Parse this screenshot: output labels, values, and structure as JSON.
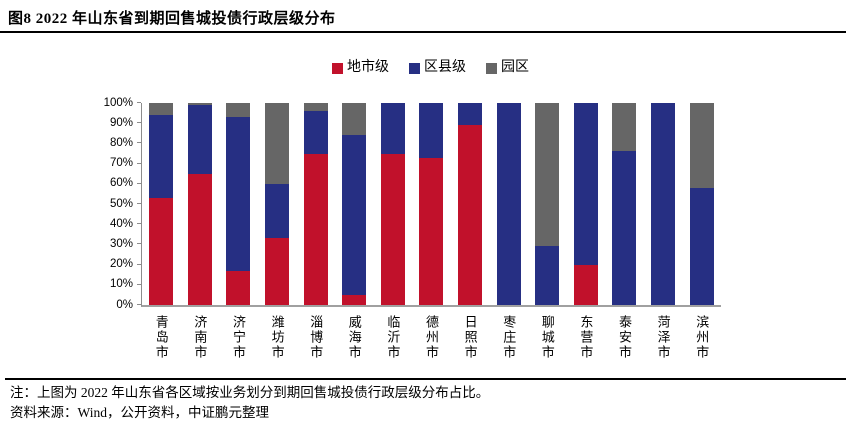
{
  "header": {
    "title": "图8  2022 年山东省到期回售城投债行政层级分布"
  },
  "chart_data": {
    "type": "bar",
    "stacked": true,
    "percent": true,
    "title": "",
    "xlabel": "",
    "ylabel": "",
    "ylim": [
      0,
      100
    ],
    "grid": false,
    "legend_position": "top-center",
    "y_ticks": [
      "0%",
      "10%",
      "20%",
      "30%",
      "40%",
      "50%",
      "60%",
      "70%",
      "80%",
      "90%",
      "100%"
    ],
    "categories": [
      "青岛市",
      "济南市",
      "济宁市",
      "潍坊市",
      "淄博市",
      "威海市",
      "临沂市",
      "德州市",
      "日照市",
      "枣庄市",
      "聊城市",
      "东营市",
      "泰安市",
      "菏泽市",
      "滨州市"
    ],
    "series": [
      {
        "name": "地市级",
        "color": "#c1112b",
        "values": [
          53,
          65,
          17,
          33,
          75,
          5,
          75,
          73,
          89,
          0,
          0,
          20,
          0,
          0,
          0
        ]
      },
      {
        "name": "区县级",
        "color": "#262f83",
        "values": [
          41,
          34,
          76,
          27,
          21,
          79,
          25,
          27,
          11,
          100,
          29,
          80,
          76,
          100,
          58
        ]
      },
      {
        "name": "园区",
        "color": "#666666",
        "values": [
          6,
          1,
          7,
          40,
          4,
          16,
          0,
          0,
          0,
          0,
          71,
          0,
          24,
          0,
          42
        ]
      }
    ]
  },
  "colors": {
    "axis": "#8c8c8c",
    "divider": "#000000"
  },
  "footer": {
    "note": "注：上图为 2022 年山东省各区域按业务划分到期回售城投债行政层级分布占比。",
    "source": "资料来源：Wind，公开资料，中证鹏元整理"
  }
}
